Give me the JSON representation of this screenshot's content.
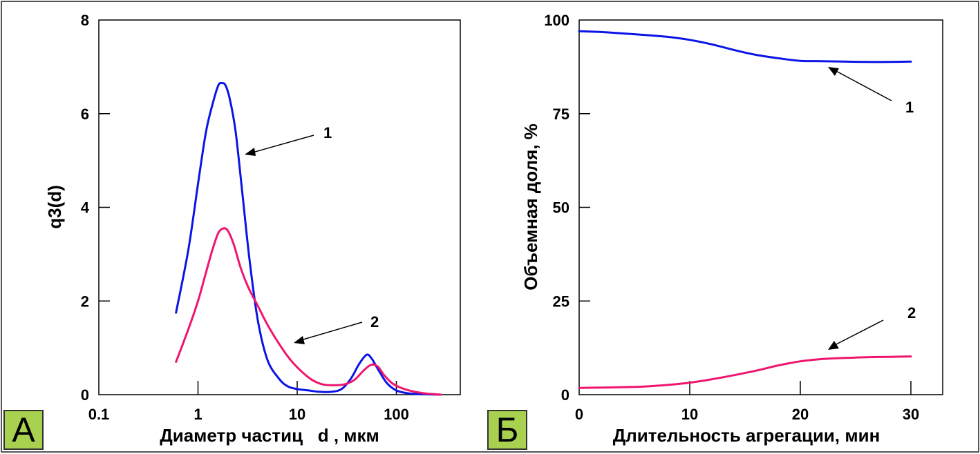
{
  "chart_data": [
    {
      "type": "line",
      "panel_label": "А",
      "title": "",
      "xlabel": "Диаметр частиц   d , мкм",
      "ylabel": "q3(d)",
      "xscale": "log",
      "xlim": [
        0.1,
        300
      ],
      "ylim": [
        0,
        8
      ],
      "xticks": [
        0.1,
        1,
        10,
        100
      ],
      "xtick_labels": [
        "0.1",
        "1",
        "10",
        "100"
      ],
      "yticks": [
        0,
        2,
        4,
        6,
        8
      ],
      "ytick_labels": [
        "0",
        "2",
        "4",
        "6",
        "8"
      ],
      "grid": false,
      "series": [
        {
          "name": "1",
          "color": "#0a14e6",
          "x": [
            0.6,
            0.8,
            1.0,
            1.2,
            1.4,
            1.6,
            1.75,
            1.9,
            2.1,
            2.4,
            2.8,
            3.3,
            4.0,
            5.0,
            6.5,
            8.0,
            10,
            13,
            17,
            22,
            28,
            35,
            42,
            50,
            56,
            65,
            80,
            100,
            130,
            180,
            280
          ],
          "y": [
            1.75,
            3.1,
            4.5,
            5.6,
            6.2,
            6.6,
            6.65,
            6.6,
            6.3,
            5.6,
            4.3,
            2.9,
            1.6,
            0.75,
            0.35,
            0.18,
            0.12,
            0.09,
            0.06,
            0.06,
            0.12,
            0.35,
            0.65,
            0.85,
            0.78,
            0.55,
            0.25,
            0.09,
            0.03,
            0.01,
            0.0
          ]
        },
        {
          "name": "2",
          "color": "#f0146e",
          "x": [
            0.6,
            0.8,
            1.0,
            1.2,
            1.4,
            1.6,
            1.8,
            2.0,
            2.3,
            2.7,
            3.2,
            4.0,
            5.0,
            6.5,
            8.5,
            11,
            14,
            18,
            23,
            30,
            38,
            47,
            56,
            65,
            75,
            90,
            110,
            140,
            190,
            280
          ],
          "y": [
            0.7,
            1.4,
            2.0,
            2.6,
            3.1,
            3.45,
            3.55,
            3.5,
            3.2,
            2.7,
            2.3,
            1.9,
            1.5,
            1.1,
            0.75,
            0.5,
            0.32,
            0.22,
            0.2,
            0.22,
            0.32,
            0.52,
            0.64,
            0.6,
            0.42,
            0.25,
            0.15,
            0.08,
            0.03,
            0.0
          ]
        }
      ],
      "annotations": [
        {
          "text": "1",
          "points_to_series": "1"
        },
        {
          "text": "2",
          "points_to_series": "2"
        }
      ]
    },
    {
      "type": "line",
      "panel_label": "Б",
      "title": "",
      "xlabel": "Длительность агрегации, мин",
      "ylabel": "Объемная доля, %",
      "xlim": [
        0,
        33
      ],
      "ylim": [
        0,
        100
      ],
      "xticks": [
        0,
        10,
        20,
        30
      ],
      "xtick_labels": [
        "0",
        "10",
        "20",
        "30"
      ],
      "yticks": [
        0,
        25,
        50,
        75,
        100
      ],
      "ytick_labels": [
        "0",
        "25",
        "50",
        "75",
        "100"
      ],
      "grid": false,
      "series": [
        {
          "name": "1",
          "color": "#0a14e6",
          "x": [
            0,
            2,
            4,
            6,
            8,
            10,
            12,
            14,
            16,
            18,
            20,
            22,
            24,
            26,
            28,
            30
          ],
          "y": [
            97,
            96.8,
            96.4,
            96,
            95.5,
            94.7,
            93.5,
            92,
            90.7,
            89.8,
            89.1,
            89,
            88.9,
            88.8,
            88.8,
            88.9
          ]
        },
        {
          "name": "2",
          "color": "#f0146e",
          "x": [
            0,
            2,
            4,
            6,
            8,
            10,
            12,
            14,
            16,
            18,
            20,
            22,
            24,
            26,
            28,
            30
          ],
          "y": [
            1.8,
            1.9,
            2.0,
            2.2,
            2.6,
            3.2,
            4.1,
            5.2,
            6.4,
            7.8,
            8.9,
            9.5,
            9.8,
            10.0,
            10.1,
            10.2
          ]
        }
      ],
      "annotations": [
        {
          "text": "1",
          "points_to_series": "1"
        },
        {
          "text": "2",
          "points_to_series": "2"
        }
      ]
    }
  ]
}
